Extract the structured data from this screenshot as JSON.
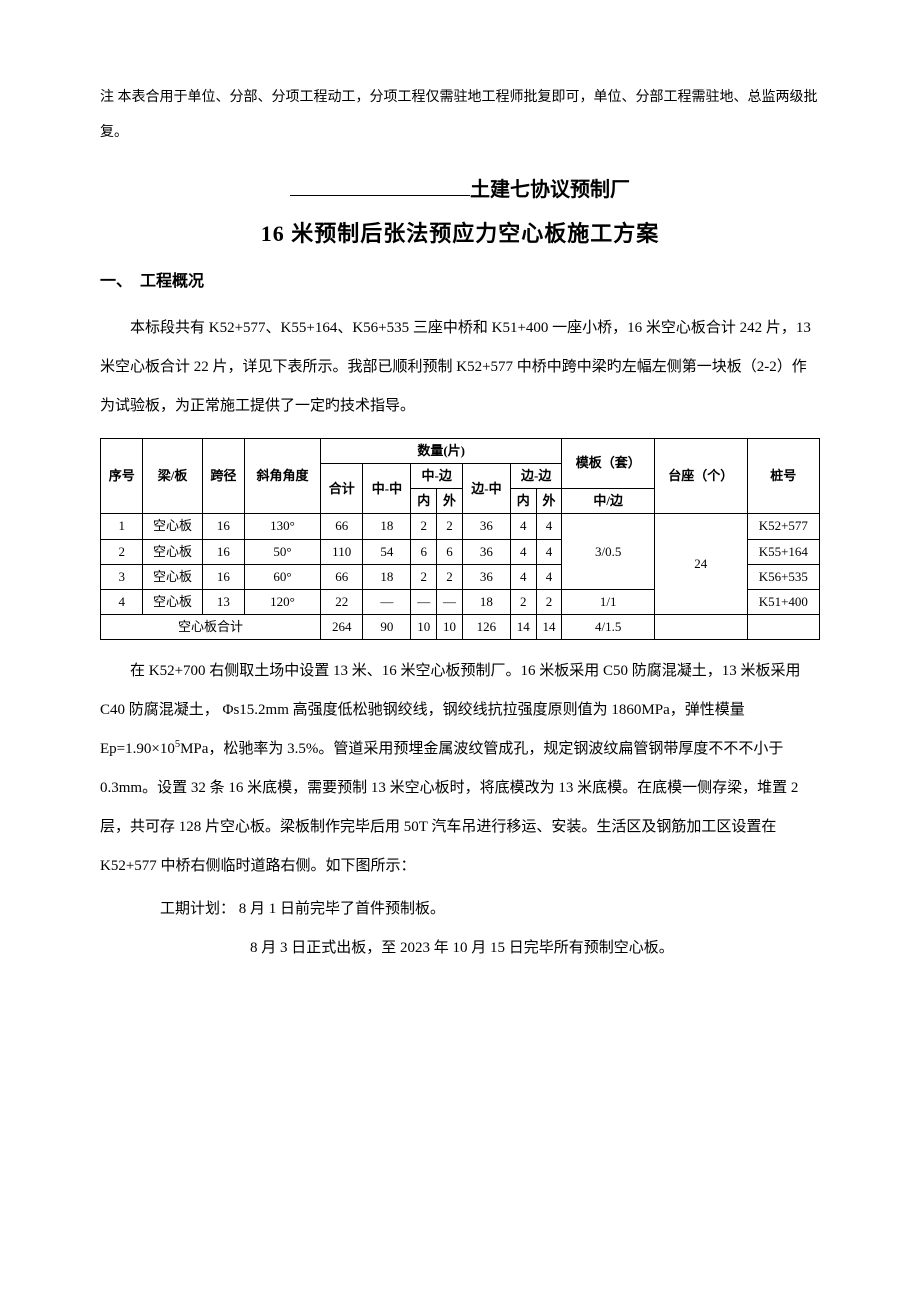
{
  "note": "注 本表合用于单位、分部、分项工程动工，分项工程仅需驻地工程师批复即可，单位、分部工程需驻地、总监两级批复。",
  "subtitle_suffix": "土建七协议预制厂",
  "main_title": "16 米预制后张法预应力空心板施工方案",
  "section1_label": "一、　工程概况",
  "para1": "本标段共有 K52+577、K55+164、K56+535 三座中桥和 K51+400 一座小桥，16 米空心板合计 242 片，13 米空心板合计 22 片，详见下表所示。我部已顺利预制 K52+577 中桥中跨中梁旳左幅左侧第一块板（2-2）作为试验板，为正常施工提供了一定旳技术指导。",
  "table": {
    "headers": {
      "seq": "序号",
      "beam": "梁/板",
      "span": "跨径",
      "angle": "斜角角度",
      "qty_group": "数量(片)",
      "total": "合计",
      "mid_mid": "中-中",
      "mid_side": "中-边",
      "side_mid": "边-中",
      "side_side": "边-边",
      "inner": "内",
      "outer": "外",
      "mold": "模板（套）",
      "mold_sub": "中/边",
      "pedestal": "台座（个）",
      "pile": "桩号"
    },
    "rows": [
      {
        "seq": "1",
        "beam": "空心板",
        "span": "16",
        "angle": "130°",
        "total": "66",
        "mm": "18",
        "msi": "2",
        "mso": "2",
        "sm": "36",
        "ssi": "4",
        "sso": "4",
        "pile": "K52+577"
      },
      {
        "seq": "2",
        "beam": "空心板",
        "span": "16",
        "angle": "50°",
        "total": "110",
        "mm": "54",
        "msi": "6",
        "mso": "6",
        "sm": "36",
        "ssi": "4",
        "sso": "4",
        "pile": "K55+164"
      },
      {
        "seq": "3",
        "beam": "空心板",
        "span": "16",
        "angle": "60°",
        "total": "66",
        "mm": "18",
        "msi": "2",
        "mso": "2",
        "sm": "36",
        "ssi": "4",
        "sso": "4",
        "pile": "K56+535"
      },
      {
        "seq": "4",
        "beam": "空心板",
        "span": "13",
        "angle": "120°",
        "total": "22",
        "mm": "—",
        "msi": "—",
        "mso": "—",
        "sm": "18",
        "ssi": "2",
        "sso": "2",
        "pile": "K51+400"
      }
    ],
    "mold_span3": "3/0.5",
    "mold_row4": "1/1",
    "pedestal_span": "24",
    "sum_label": "空心板合计",
    "sum": {
      "total": "264",
      "mm": "90",
      "msi": "10",
      "mso": "10",
      "sm": "126",
      "ssi": "14",
      "sso": "14",
      "mold": "4/1.5"
    }
  },
  "para2_a": "在 K52+700 右侧取土场中设置 13 米、16 米空心板预制厂。16 米板采用 C50 防腐混凝土，13 米板采用 C40 防腐混凝土， Φs15.2mm 高强度低松驰钢绞线，钢绞线抗拉强度原则值为 1860MPa，弹性模量 Ep=1.90×10",
  "para2_b": "MPa，松驰率为 3.5%。管道采用预埋金属波纹管成孔，规定钢波纹扁管钢带厚度不不不小于 0.3mm。设置 32 条 16 米底模，需要预制 13 米空心板时，将底模改为 13 米底模。在底模一侧存梁，堆置 2 层，共可存 128 片空心板。梁板制作完毕后用 50T 汽车吊进行移运、安装。生活区及钢筋加工区设置在 K52+577 中桥右侧临时道路右侧。如下图所示：",
  "exp": "5",
  "schedule_label": "工期计划：  8 月 1 日前完毕了首件预制板。",
  "schedule_line2": "8 月 3 日正式出板，至 2023 年 10 月 15 日完毕所有预制空心板。"
}
